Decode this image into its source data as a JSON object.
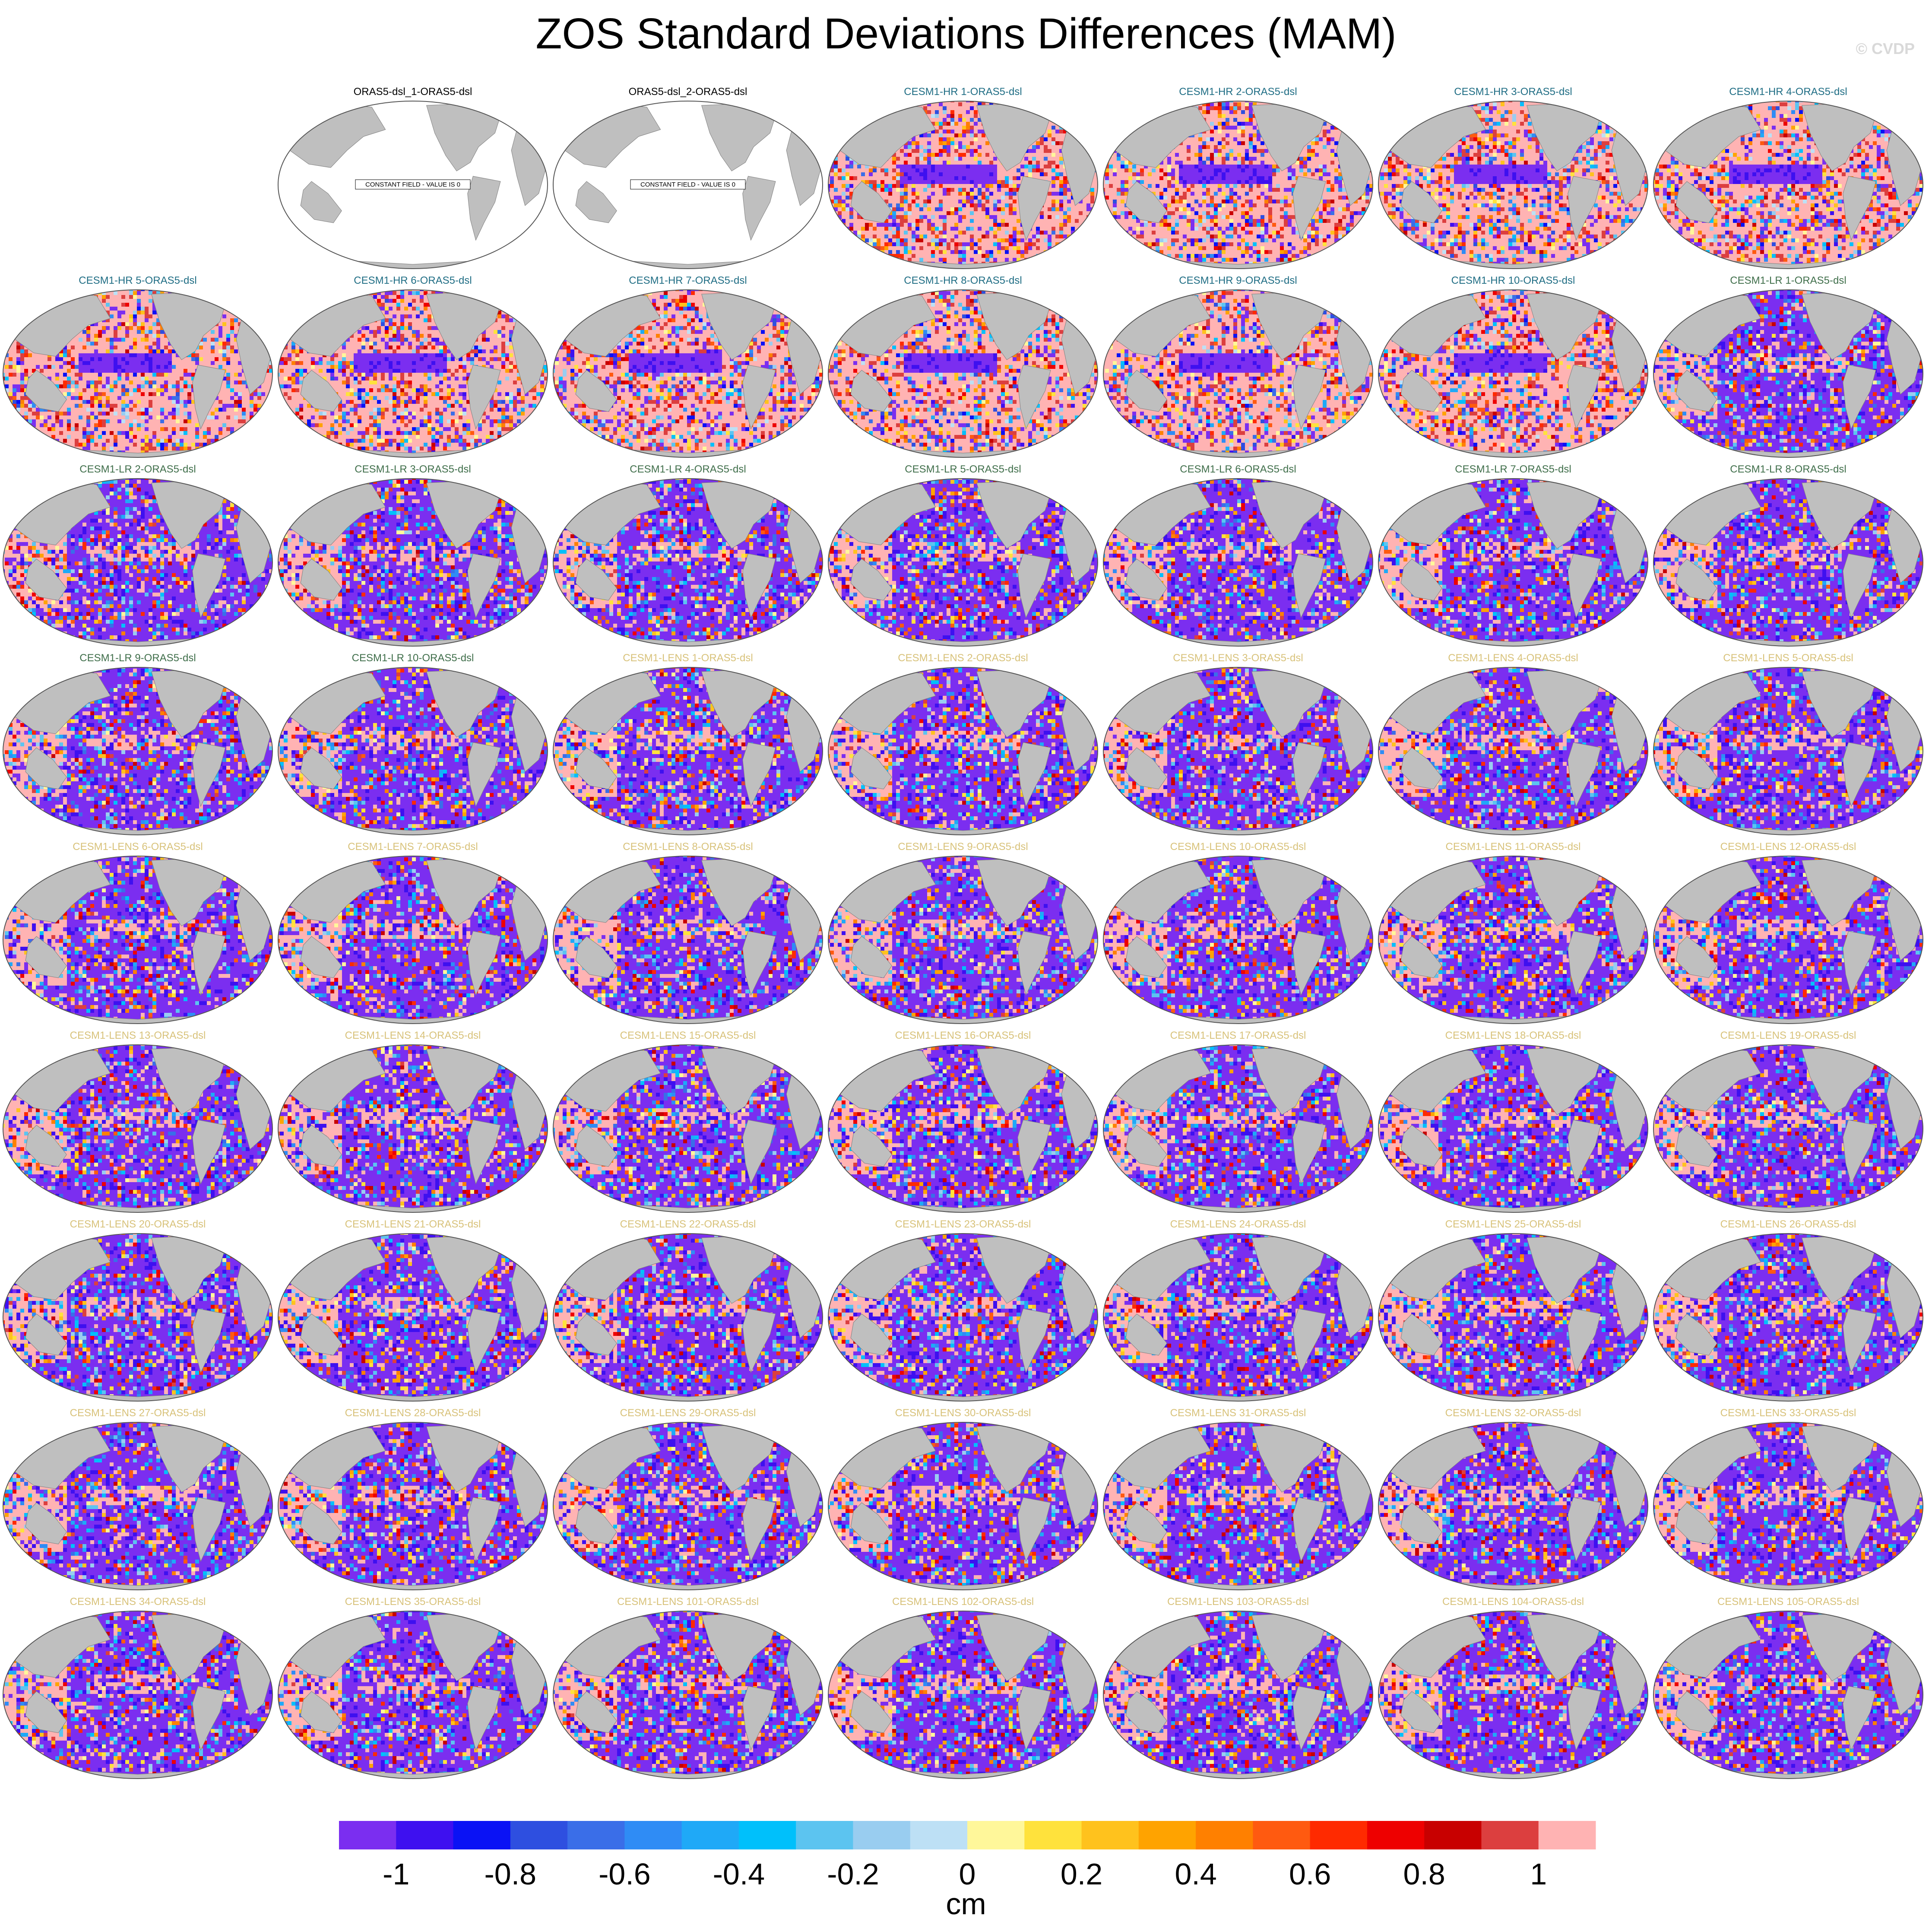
{
  "title": "ZOS Standard Deviations Differences (MAM)",
  "copyright": "© CVDP",
  "colors": {
    "land": "#bfbfbf",
    "ocean_zero": "#ffffff",
    "title_obs": "#000000",
    "title_hr": "#1f6d84",
    "title_lr": "#3f6e4a",
    "title_lens": "#d8c27a"
  },
  "colorbar": {
    "units": "cm",
    "tick_labels": [
      "-1",
      "-0.8",
      "-0.6",
      "-0.4",
      "-0.2",
      "0",
      "0.2",
      "0.4",
      "0.6",
      "0.8",
      "1"
    ],
    "levels": [
      -1,
      -0.8,
      -0.6,
      -0.4,
      -0.2,
      0,
      0.2,
      0.4,
      0.6,
      0.8,
      1
    ],
    "colors": [
      "#7b2ef0",
      "#3e10f0",
      "#0a12f5",
      "#2e4fe0",
      "#3a6ee8",
      "#2f8cf5",
      "#1fa9f7",
      "#00c0fb",
      "#5cc4f0",
      "#99cdf0",
      "#bde0f5",
      "#fff79a",
      "#ffe23c",
      "#ffc21d",
      "#ffa300",
      "#ff8000",
      "#ff5a10",
      "#ff2a00",
      "#ee0000",
      "#c80000",
      "#dc3f3f",
      "#ffb3b3"
    ]
  },
  "chart_data": {
    "type": "heatmap",
    "title": "ZOS Standard Deviations Differences (MAM)",
    "colorbar_units": "cm",
    "colorbar_range": [
      -1,
      1
    ],
    "panels": [
      {
        "title": "ORAS5-dsl_1-ORAS5-dsl",
        "group": "obs",
        "constant": true,
        "note": "CONSTANT FIELD - VALUE IS 0"
      },
      {
        "title": "ORAS5-dsl_2-ORAS5-dsl",
        "group": "obs",
        "constant": true,
        "note": "CONSTANT FIELD - VALUE IS 0"
      },
      {
        "title": "CESM1-HR 1-ORAS5-dsl",
        "group": "hr"
      },
      {
        "title": "CESM1-HR 2-ORAS5-dsl",
        "group": "hr"
      },
      {
        "title": "CESM1-HR 3-ORAS5-dsl",
        "group": "hr"
      },
      {
        "title": "CESM1-HR 4-ORAS5-dsl",
        "group": "hr"
      },
      {
        "title": "CESM1-HR 5-ORAS5-dsl",
        "group": "hr"
      },
      {
        "title": "CESM1-HR 6-ORAS5-dsl",
        "group": "hr"
      },
      {
        "title": "CESM1-HR 7-ORAS5-dsl",
        "group": "hr"
      },
      {
        "title": "CESM1-HR 8-ORAS5-dsl",
        "group": "hr"
      },
      {
        "title": "CESM1-HR 9-ORAS5-dsl",
        "group": "hr"
      },
      {
        "title": "CESM1-HR 10-ORAS5-dsl",
        "group": "hr"
      },
      {
        "title": "CESM1-LR 1-ORAS5-dsl",
        "group": "lr"
      },
      {
        "title": "CESM1-LR 2-ORAS5-dsl",
        "group": "lr"
      },
      {
        "title": "CESM1-LR 3-ORAS5-dsl",
        "group": "lr"
      },
      {
        "title": "CESM1-LR 4-ORAS5-dsl",
        "group": "lr"
      },
      {
        "title": "CESM1-LR 5-ORAS5-dsl",
        "group": "lr"
      },
      {
        "title": "CESM1-LR 6-ORAS5-dsl",
        "group": "lr"
      },
      {
        "title": "CESM1-LR 7-ORAS5-dsl",
        "group": "lr"
      },
      {
        "title": "CESM1-LR 8-ORAS5-dsl",
        "group": "lr"
      },
      {
        "title": "CESM1-LR 9-ORAS5-dsl",
        "group": "lr"
      },
      {
        "title": "CESM1-LR 10-ORAS5-dsl",
        "group": "lr"
      },
      {
        "title": "CESM1-LENS 1-ORAS5-dsl",
        "group": "lens"
      },
      {
        "title": "CESM1-LENS 2-ORAS5-dsl",
        "group": "lens"
      },
      {
        "title": "CESM1-LENS 3-ORAS5-dsl",
        "group": "lens"
      },
      {
        "title": "CESM1-LENS 4-ORAS5-dsl",
        "group": "lens"
      },
      {
        "title": "CESM1-LENS 5-ORAS5-dsl",
        "group": "lens"
      },
      {
        "title": "CESM1-LENS 6-ORAS5-dsl",
        "group": "lens"
      },
      {
        "title": "CESM1-LENS 7-ORAS5-dsl",
        "group": "lens"
      },
      {
        "title": "CESM1-LENS 8-ORAS5-dsl",
        "group": "lens"
      },
      {
        "title": "CESM1-LENS 9-ORAS5-dsl",
        "group": "lens"
      },
      {
        "title": "CESM1-LENS 10-ORAS5-dsl",
        "group": "lens"
      },
      {
        "title": "CESM1-LENS 11-ORAS5-dsl",
        "group": "lens"
      },
      {
        "title": "CESM1-LENS 12-ORAS5-dsl",
        "group": "lens"
      },
      {
        "title": "CESM1-LENS 13-ORAS5-dsl",
        "group": "lens"
      },
      {
        "title": "CESM1-LENS 14-ORAS5-dsl",
        "group": "lens"
      },
      {
        "title": "CESM1-LENS 15-ORAS5-dsl",
        "group": "lens"
      },
      {
        "title": "CESM1-LENS 16-ORAS5-dsl",
        "group": "lens"
      },
      {
        "title": "CESM1-LENS 17-ORAS5-dsl",
        "group": "lens"
      },
      {
        "title": "CESM1-LENS 18-ORAS5-dsl",
        "group": "lens"
      },
      {
        "title": "CESM1-LENS 19-ORAS5-dsl",
        "group": "lens"
      },
      {
        "title": "CESM1-LENS 20-ORAS5-dsl",
        "group": "lens"
      },
      {
        "title": "CESM1-LENS 21-ORAS5-dsl",
        "group": "lens"
      },
      {
        "title": "CESM1-LENS 22-ORAS5-dsl",
        "group": "lens"
      },
      {
        "title": "CESM1-LENS 23-ORAS5-dsl",
        "group": "lens"
      },
      {
        "title": "CESM1-LENS 24-ORAS5-dsl",
        "group": "lens"
      },
      {
        "title": "CESM1-LENS 25-ORAS5-dsl",
        "group": "lens"
      },
      {
        "title": "CESM1-LENS 26-ORAS5-dsl",
        "group": "lens"
      },
      {
        "title": "CESM1-LENS 27-ORAS5-dsl",
        "group": "lens"
      },
      {
        "title": "CESM1-LENS 28-ORAS5-dsl",
        "group": "lens"
      },
      {
        "title": "CESM1-LENS 29-ORAS5-dsl",
        "group": "lens"
      },
      {
        "title": "CESM1-LENS 30-ORAS5-dsl",
        "group": "lens"
      },
      {
        "title": "CESM1-LENS 31-ORAS5-dsl",
        "group": "lens"
      },
      {
        "title": "CESM1-LENS 32-ORAS5-dsl",
        "group": "lens"
      },
      {
        "title": "CESM1-LENS 33-ORAS5-dsl",
        "group": "lens"
      },
      {
        "title": "CESM1-LENS 34-ORAS5-dsl",
        "group": "lens"
      },
      {
        "title": "CESM1-LENS 35-ORAS5-dsl",
        "group": "lens"
      },
      {
        "title": "CESM1-LENS 101-ORAS5-dsl",
        "group": "lens"
      },
      {
        "title": "CESM1-LENS 102-ORAS5-dsl",
        "group": "lens"
      },
      {
        "title": "CESM1-LENS 103-ORAS5-dsl",
        "group": "lens"
      },
      {
        "title": "CESM1-LENS 104-ORAS5-dsl",
        "group": "lens"
      },
      {
        "title": "CESM1-LENS 105-ORAS5-dsl",
        "group": "lens"
      }
    ]
  }
}
